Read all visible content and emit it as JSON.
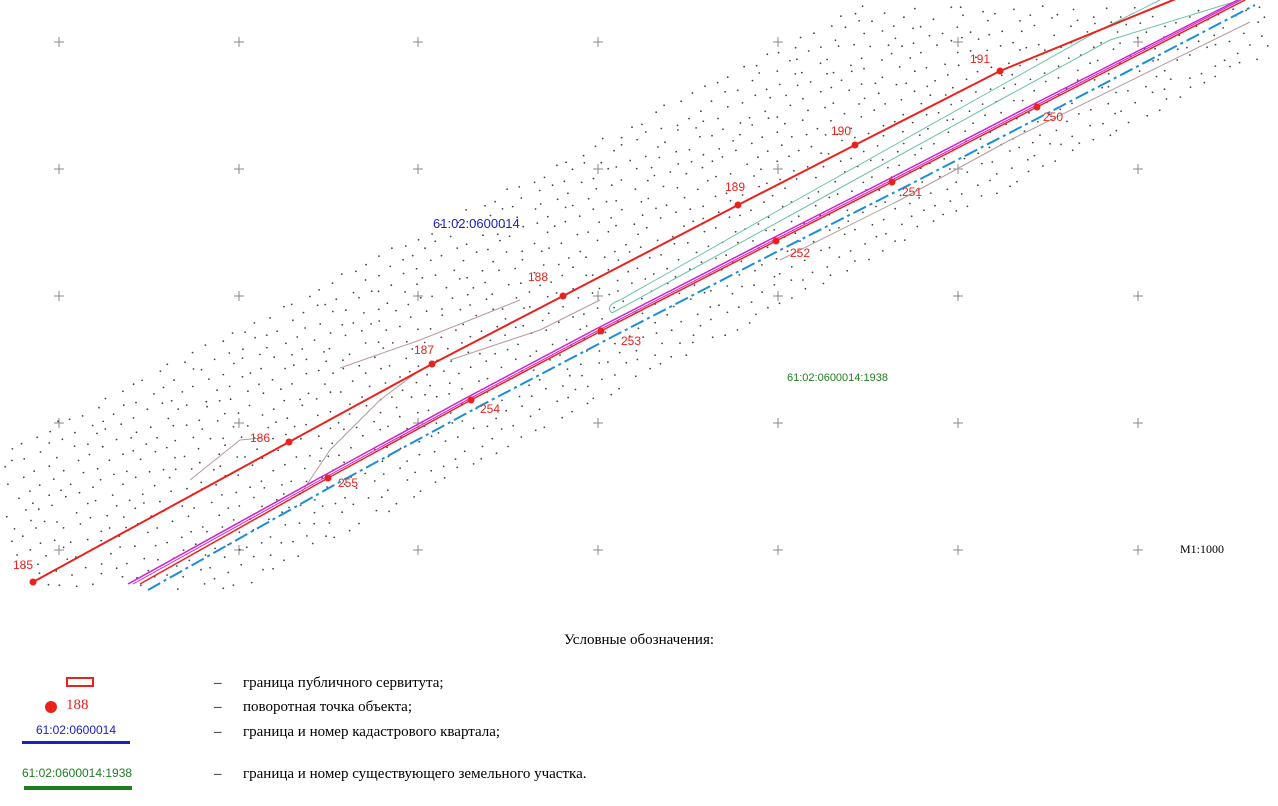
{
  "map": {
    "quarter_label": "61:02:0600014",
    "parcel_label": "61:02:0600014:1938",
    "scale": "М1:1000",
    "colors": {
      "easement": "#e8231e",
      "quarter": "#1a22b8",
      "parcel": "#1f7d1f",
      "magenta": "#d21ed2",
      "cyan": "#1b8fd6",
      "teal": "#6ec2a6"
    },
    "top_points": [
      "185",
      "186",
      "187",
      "188",
      "189",
      "190",
      "191"
    ],
    "bottom_points": [
      "255",
      "254",
      "253",
      "252",
      "251",
      "250"
    ]
  },
  "legend": {
    "title": "Условные обозначения:",
    "dash": "–",
    "items": [
      {
        "text": "граница публичного сервитута;"
      },
      {
        "symbol_label": "188",
        "text": "поворотная точка объекта;"
      },
      {
        "symbol_label": "61:02:0600014",
        "text": "граница и номер кадастрового квартала;"
      },
      {
        "symbol_label": "61:02:0600014:1938",
        "text": "граница и номер существующего земельного участка."
      }
    ]
  }
}
